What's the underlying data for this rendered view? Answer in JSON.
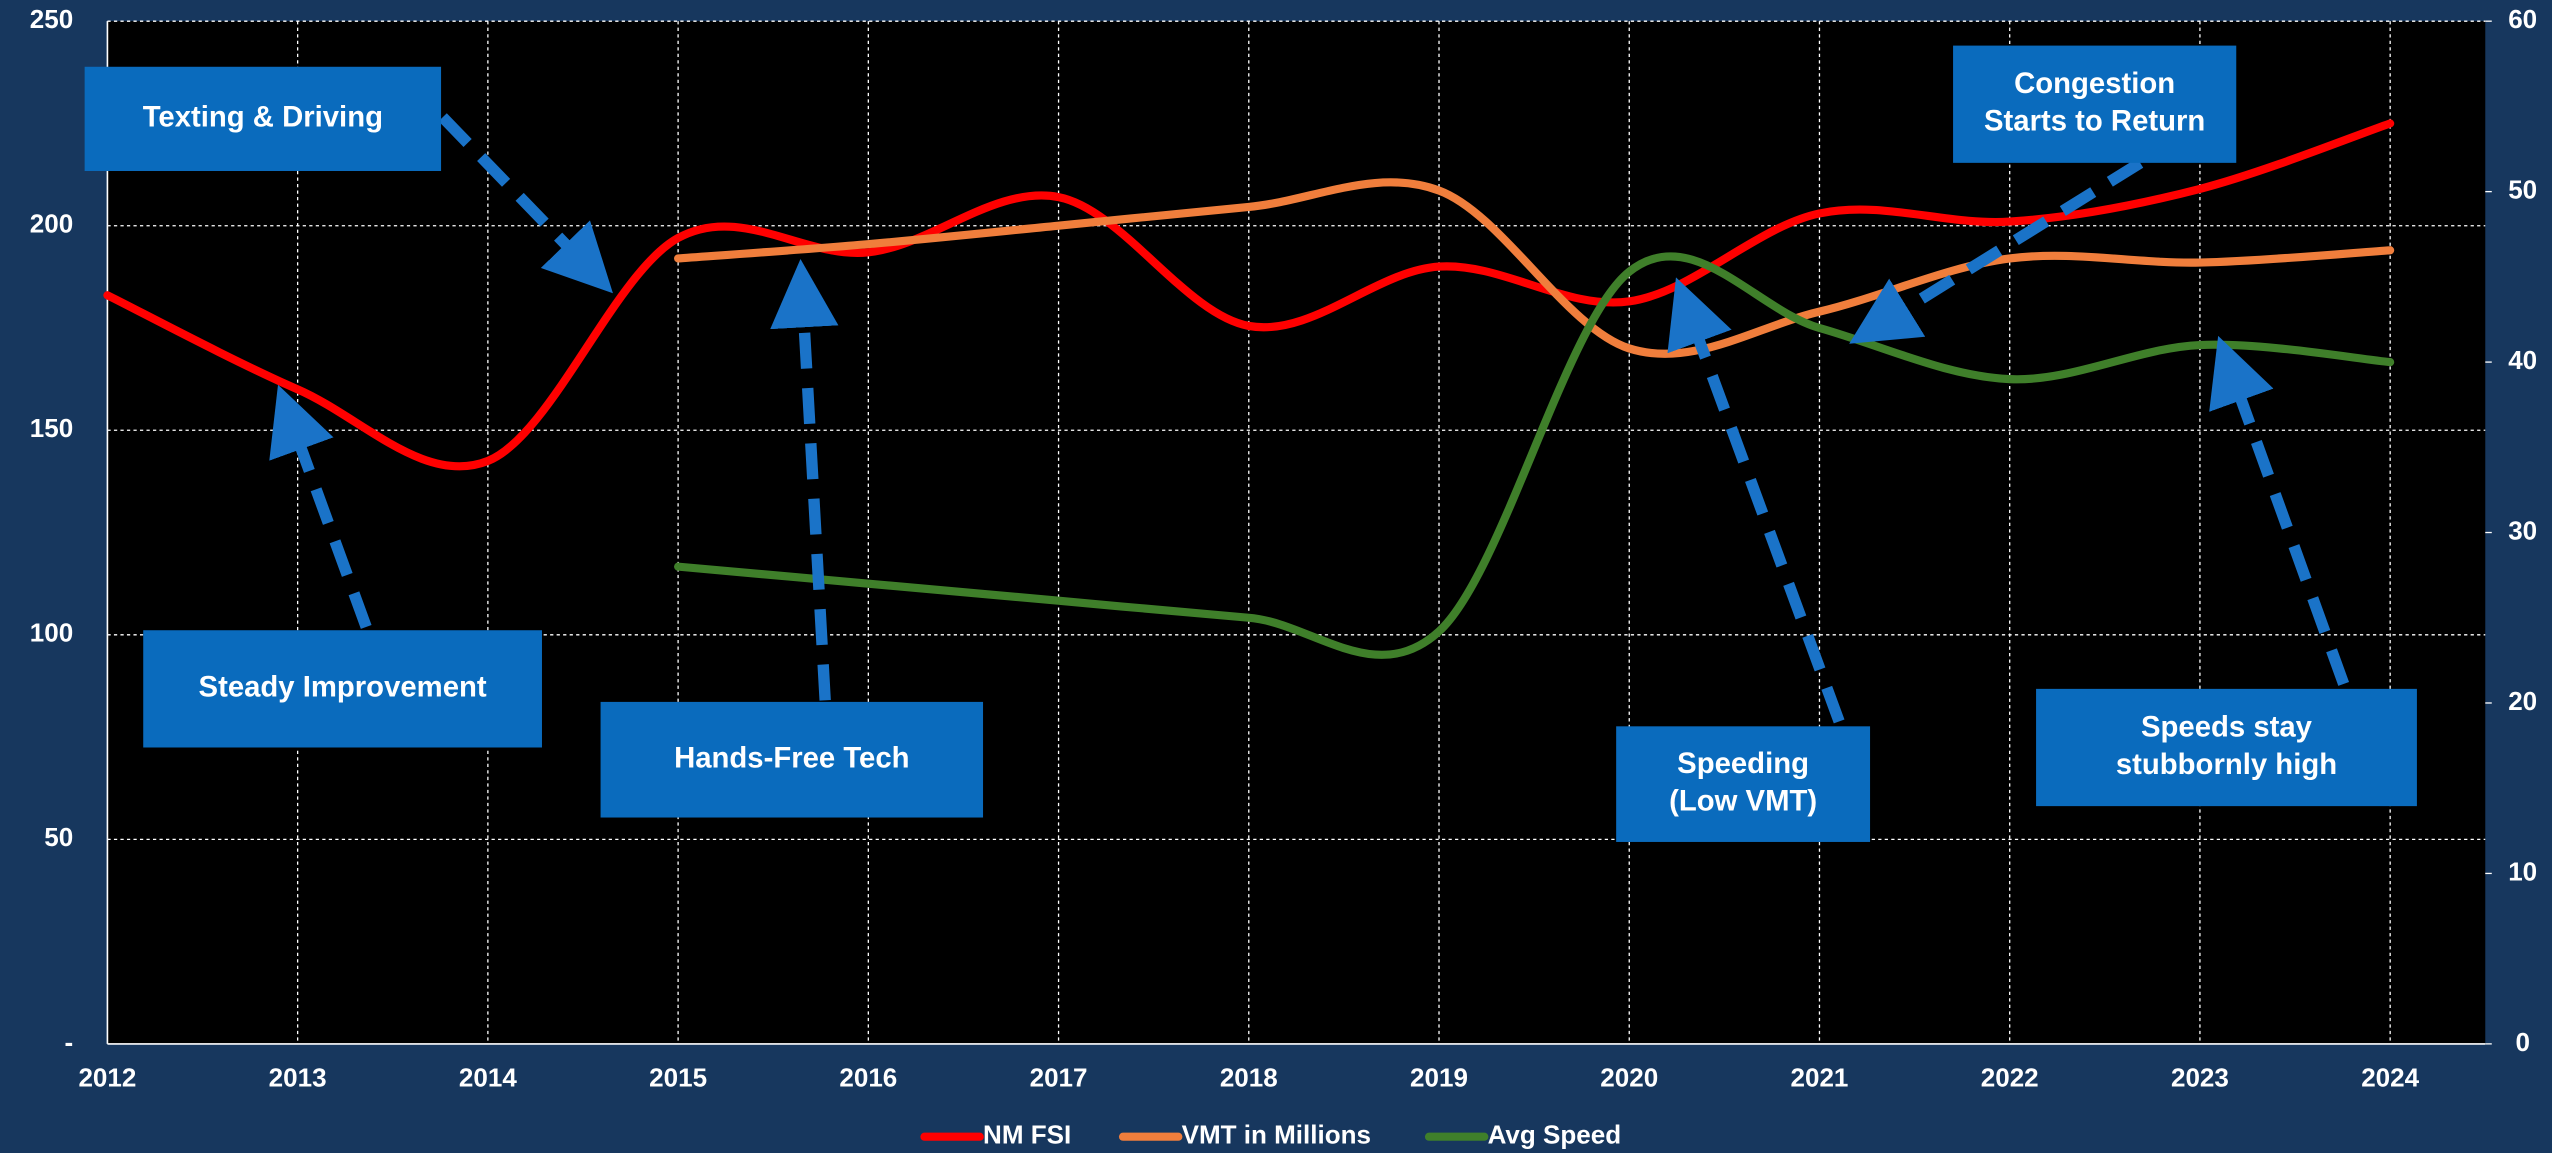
{
  "chart_data": {
    "type": "line",
    "x": [
      2012,
      2013,
      2014,
      2015,
      2016,
      2017,
      2018,
      2019,
      2020,
      2021,
      2022,
      2023,
      2024
    ],
    "xlim": [
      2012,
      2024.5
    ],
    "xticks": [
      2012,
      2013,
      2014,
      2015,
      2016,
      2017,
      2018,
      2019,
      2020,
      2021,
      2022,
      2023,
      2024
    ],
    "ylim": [
      0,
      250
    ],
    "yticks": [
      {
        "value": 0,
        "label": "-"
      },
      50,
      100,
      150,
      200,
      250
    ],
    "y2lim": [
      0,
      60
    ],
    "y2ticks": [
      0,
      10,
      20,
      30,
      40,
      50,
      60
    ],
    "grid": true,
    "legend": "bottom",
    "series": [
      {
        "name": "NM FSI",
        "color": "#ff0000",
        "values": [
          183,
          160,
          142.5,
          197,
          193.5,
          207,
          175.5,
          190,
          181.5,
          203,
          201,
          209,
          225
        ]
      },
      {
        "name": "VMT in Millions",
        "color": "#f07e3c",
        "values": [
          null,
          null,
          null,
          192,
          195.5,
          200,
          204.6,
          208.6,
          170,
          179,
          192,
          191,
          194
        ]
      },
      {
        "name": "Avg Speed",
        "color": "#3f7f2a",
        "axis": "y2",
        "values": [
          null,
          null,
          null,
          28,
          27,
          26,
          25,
          24.2,
          45.3,
          42,
          39,
          41,
          40
        ]
      }
    ],
    "annotations": [
      {
        "lines": [
          "Texting & Driving"
        ]
      },
      {
        "lines": [
          "Steady Improvement"
        ]
      },
      {
        "lines": [
          "Hands-Free Tech"
        ]
      },
      {
        "lines": [
          "Speeding",
          "(Low VMT)"
        ]
      },
      {
        "lines": [
          "Speeds stay",
          "stubbornly high"
        ]
      },
      {
        "lines": [
          "Congestion",
          "Starts to Return"
        ]
      }
    ]
  }
}
